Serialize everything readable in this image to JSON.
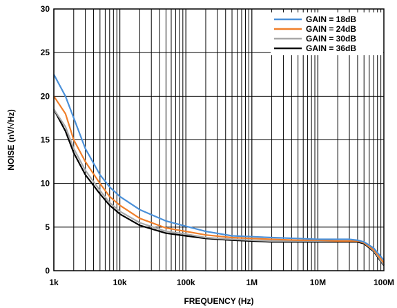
{
  "chart_data": {
    "type": "line",
    "title": "",
    "xlabel": "FREQUENCY (Hz)",
    "ylabel": "NOISE (nV/√Hz)",
    "xscale": "log",
    "xlim": [
      1000,
      100000000
    ],
    "ylim": [
      0,
      30
    ],
    "grid": true,
    "legend_position": "top-right",
    "x_ticks": [
      1000,
      10000,
      100000,
      1000000,
      10000000,
      100000000
    ],
    "x_tick_labels": [
      "1k",
      "10k",
      "100k",
      "1M",
      "10M",
      "100M"
    ],
    "y_ticks": [
      0,
      5,
      10,
      15,
      20,
      25,
      30
    ],
    "y_tick_labels": [
      "0",
      "5",
      "10",
      "15",
      "20",
      "25",
      "30"
    ],
    "x": [
      1000,
      1500,
      2000,
      3000,
      5000,
      7000,
      10000,
      20000,
      50000,
      100000,
      200000,
      500000,
      1000000,
      2000000,
      5000000,
      10000000,
      20000000,
      30000000,
      40000000,
      50000000,
      70000000,
      100000000
    ],
    "series": [
      {
        "name": "GAIN = 18dB",
        "color": "#4a90d9",
        "values": [
          22.5,
          20.0,
          17.5,
          14.0,
          11.0,
          9.6,
          8.5,
          7.0,
          5.7,
          5.1,
          4.5,
          4.0,
          3.9,
          3.8,
          3.7,
          3.6,
          3.6,
          3.6,
          3.5,
          3.3,
          2.6,
          1.2
        ]
      },
      {
        "name": "GAIN = 24dB",
        "color": "#f07f2a",
        "values": [
          20.0,
          18.0,
          15.0,
          12.5,
          10.0,
          8.5,
          7.5,
          6.0,
          4.9,
          4.5,
          4.1,
          3.8,
          3.7,
          3.6,
          3.5,
          3.5,
          3.4,
          3.4,
          3.4,
          3.2,
          2.4,
          0.9
        ]
      },
      {
        "name": "GAIN = 30dB",
        "color": "#a8a8a8",
        "values": [
          18.5,
          16.5,
          14.0,
          11.5,
          9.2,
          7.8,
          6.8,
          5.5,
          4.5,
          4.2,
          3.8,
          3.6,
          3.5,
          3.4,
          3.4,
          3.4,
          3.4,
          3.4,
          3.4,
          3.2,
          2.3,
          0.7
        ]
      },
      {
        "name": "GAIN = 36dB",
        "color": "#000000",
        "values": [
          18.5,
          16.0,
          13.5,
          11.0,
          8.8,
          7.5,
          6.5,
          5.2,
          4.3,
          4.0,
          3.7,
          3.5,
          3.4,
          3.3,
          3.3,
          3.3,
          3.3,
          3.3,
          3.3,
          3.1,
          2.2,
          0.6
        ]
      }
    ]
  }
}
